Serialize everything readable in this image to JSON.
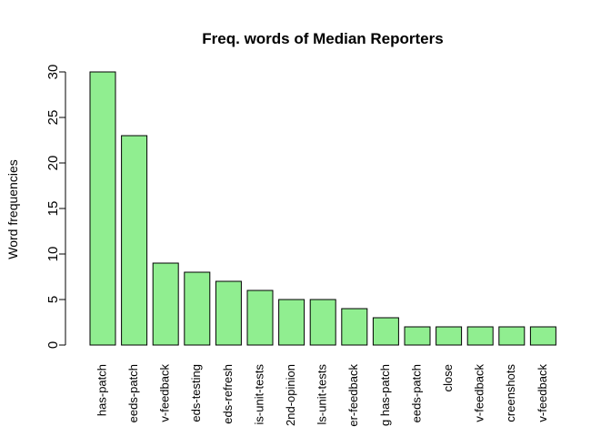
{
  "chart_data": {
    "type": "bar",
    "title": "Freq. words of Median Reporters",
    "xlabel": "",
    "ylabel": "Word frequencies",
    "ylim": [
      0,
      30
    ],
    "yticks": [
      0,
      5,
      10,
      15,
      20,
      25,
      30
    ],
    "bar_color": "#90ee90",
    "border_color": "#000000",
    "categories": [
      "has-patch",
      "eeds-patch",
      "v-feedback",
      "eds-testing",
      "eds-refresh",
      "is-unit-tests",
      "2nd-opinion",
      "ls-unit-tests",
      "er-feedback",
      "g has-patch",
      "eeds-patch",
      "close",
      "v-feedback",
      "creenshots",
      "v-feedback"
    ],
    "values": [
      30,
      23,
      9,
      8,
      7,
      6,
      5,
      5,
      4,
      3,
      2,
      2,
      2,
      2,
      2
    ]
  }
}
